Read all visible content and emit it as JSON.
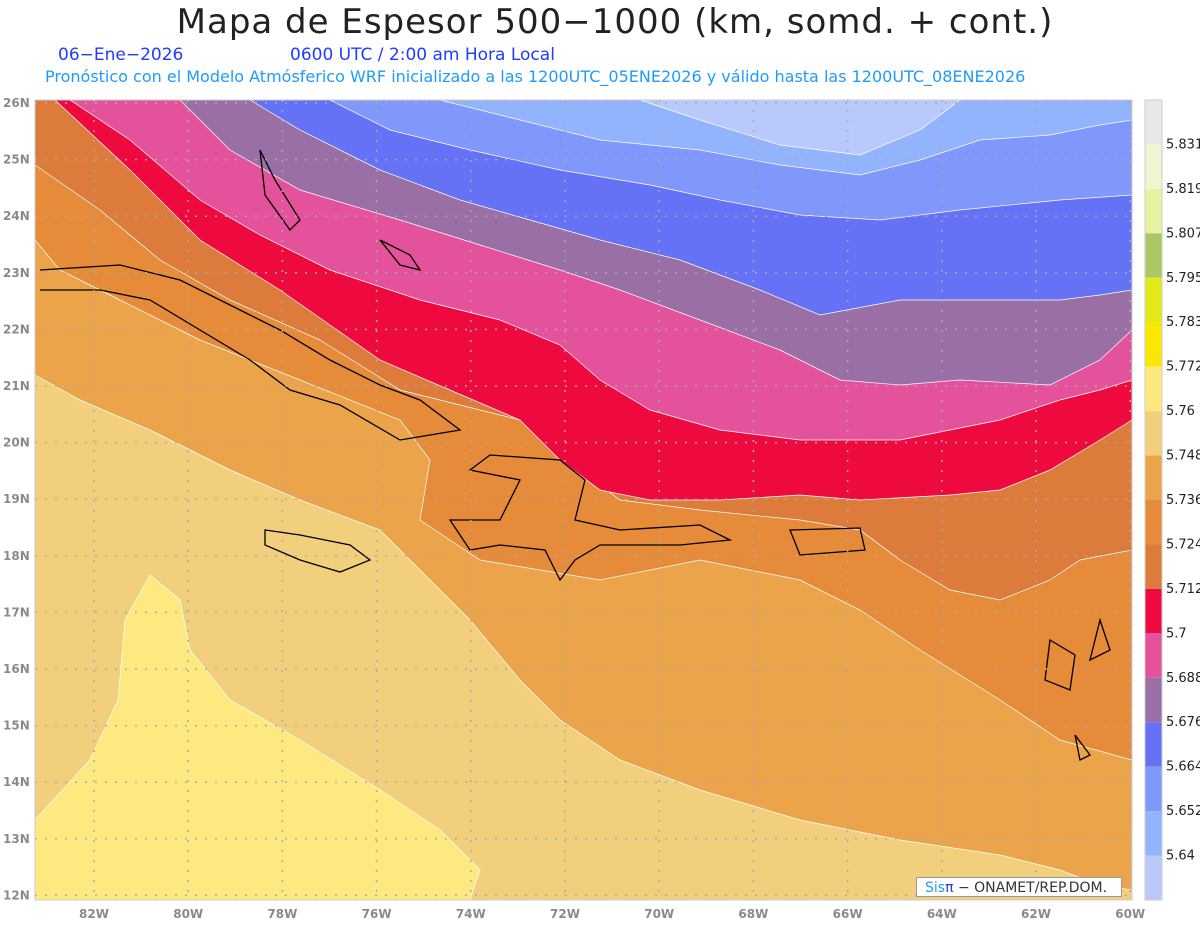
{
  "header": {
    "title": "Mapa de Espesor 500−1000 (km, somd. + cont.)",
    "date": "06−Ene−2026",
    "time": "0600 UTC / 2:00 am Hora Local",
    "subtitle": "Pronóstico con el Modelo Atmósferico WRF inicializado a las 1200UTC_05ENE2026 y válido hasta las  1200UTC_08ENE2026"
  },
  "axes": {
    "lat_labels": [
      "26N",
      "25N",
      "24N",
      "23N",
      "22N",
      "21N",
      "20N",
      "19N",
      "18N",
      "17N",
      "16N",
      "15N",
      "14N",
      "13N",
      "12N"
    ],
    "lon_labels": [
      "82W",
      "80W",
      "78W",
      "76W",
      "74W",
      "72W",
      "70W",
      "68W",
      "66W",
      "64W",
      "62W",
      "60W"
    ]
  },
  "colorbar": {
    "labels": [
      "5.831",
      "5.819",
      "5.807",
      "5.795",
      "5.783",
      "5.772",
      "5.76",
      "5.748",
      "5.736",
      "5.724",
      "5.712",
      "5.7",
      "5.688",
      "5.676",
      "5.664",
      "5.652",
      "5.64"
    ],
    "colors": [
      "#e8e8e8",
      "#eef5d2",
      "#e6f3a2",
      "#a8c964",
      "#e2eb18",
      "#fbe700",
      "#fde97f",
      "#f2cf7c",
      "#eca44b",
      "#e68b3a",
      "#dc7b3b",
      "#ee0a3f",
      "#e5529c",
      "#9a6fa6",
      "#6572f6",
      "#8097fb",
      "#92b4fc",
      "#bac9fc"
    ]
  },
  "credit": {
    "brand_a": "Sis",
    "brand_b": "π",
    "text": " −  ONAMET/REP.DOM."
  }
}
